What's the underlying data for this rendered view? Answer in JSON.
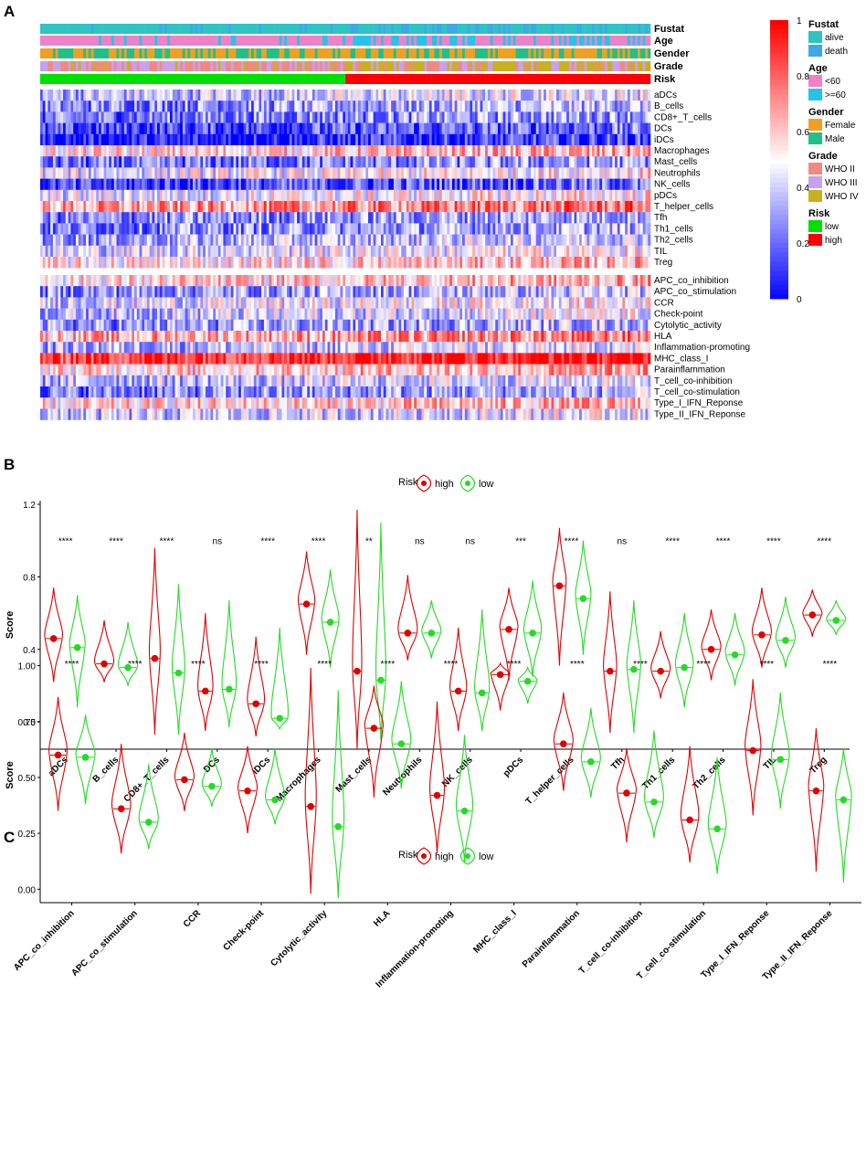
{
  "panels": {
    "a": "A",
    "b": "B",
    "c": "C"
  },
  "chart_data": [
    {
      "type": "heatmap",
      "panel": "A",
      "annotation_rows": [
        "Fustat",
        "Age",
        "Gender",
        "Grade",
        "Risk"
      ],
      "risk_split": {
        "low_fraction": 0.5
      },
      "rows_group1": [
        "aDCs",
        "B_cells",
        "CD8+_T_cells",
        "DCs",
        "iDCs",
        "Macrophages",
        "Mast_cells",
        "Neutrophils",
        "NK_cells",
        "pDCs",
        "T_helper_cells",
        "Tfh",
        "Th1_cells",
        "Th2_cells",
        "TIL",
        "Treg"
      ],
      "rows_group2": [
        "APC_co_inhibition",
        "APC_co_stimulation",
        "CCR",
        "Check-point",
        "Cytolytic_activity",
        "HLA",
        "Inflammation-promoting",
        "MHC_class_I",
        "Parainflammation",
        "T_cell_co-inhibition",
        "T_cell_co-stimulation",
        "Type_I_IFN_Reponse",
        "Type_II_IFN_Reponse"
      ],
      "row_mean_level": {
        "aDCs": 0.42,
        "B_cells": 0.32,
        "CD8+_T_cells": 0.28,
        "DCs": 0.17,
        "iDCs": 0.08,
        "Macrophages": 0.6,
        "Mast_cells": 0.25,
        "Neutrophils": 0.5,
        "NK_cells": 0.17,
        "pDCs": 0.5,
        "T_helper_cells": 0.72,
        "Tfh": 0.3,
        "Th1_cells": 0.3,
        "Th2_cells": 0.38,
        "TIL": 0.47,
        "Treg": 0.58,
        "APC_co_inhibition": 0.6,
        "APC_co_stimulation": 0.33,
        "CCR": 0.48,
        "Check-point": 0.42,
        "Cytolytic_activity": 0.32,
        "HLA": 0.69,
        "Inflammation-promoting": 0.4,
        "MHC_class_I": 0.95,
        "Parainflammation": 0.62,
        "T_cell_co-inhibition": 0.41,
        "T_cell_co-stimulation": 0.29,
        "Type_I_IFN_Reponse": 0.6,
        "Type_II_IFN_Reponse": 0.42
      },
      "colorbar": {
        "min": 0,
        "max": 1,
        "ticks": [
          1,
          0.8,
          0.6,
          0.4,
          0.2,
          0
        ],
        "low_color": "#0000ff",
        "mid_color": "#ffffff",
        "high_color": "#ff0000"
      },
      "legend": [
        {
          "title": "Fustat",
          "items": [
            {
              "label": "alive",
              "color": "#2ec4c4"
            },
            {
              "label": "death",
              "color": "#3fa7e8"
            }
          ]
        },
        {
          "title": "Age",
          "items": [
            {
              "label": "<60",
              "color": "#ee82c8"
            },
            {
              "label": ">=60",
              "color": "#22c5e8"
            }
          ]
        },
        {
          "title": "Gender",
          "items": [
            {
              "label": "Female",
              "color": "#f0a020"
            },
            {
              "label": "Male",
              "color": "#20c08a"
            }
          ]
        },
        {
          "title": "Grade",
          "items": [
            {
              "label": "WHO II",
              "color": "#f08a80"
            },
            {
              "label": "WHO III",
              "color": "#c8a0f0"
            },
            {
              "label": "WHO IV",
              "color": "#c8b020"
            }
          ]
        },
        {
          "title": "Risk",
          "items": [
            {
              "label": "low",
              "color": "#00e000"
            },
            {
              "label": "high",
              "color": "#ff0000"
            }
          ]
        }
      ]
    },
    {
      "type": "violin",
      "panel": "B",
      "ylabel": "Score",
      "ylim": [
        -0.15,
        1.22
      ],
      "yticks": [
        0.0,
        0.4,
        0.8,
        1.2
      ],
      "yticklabels": [
        "0.0",
        "0.4",
        "0.8",
        "1.2"
      ],
      "legend": {
        "title": "Risk",
        "series": [
          "high",
          "low"
        ]
      },
      "series_colors": {
        "high": "#e00000",
        "low": "#22dd22"
      },
      "categories": [
        "aDCs",
        "B_cells",
        "CD8+_T_cells",
        "DCs",
        "iDCs",
        "Macrophages",
        "Mast_cells",
        "Neutrophils",
        "NK_cells",
        "pDCs",
        "T_helper_cells",
        "Tfh",
        "Th1_cells",
        "Th2_cells",
        "TIL",
        "Treg"
      ],
      "significance": [
        "****",
        "****",
        "****",
        "ns",
        "****",
        "****",
        "**",
        "ns",
        "ns",
        "***",
        "****",
        "ns",
        "****",
        "****",
        "****",
        "****"
      ],
      "high": {
        "median": [
          0.46,
          0.32,
          0.35,
          0.17,
          0.1,
          0.65,
          0.28,
          0.49,
          0.17,
          0.51,
          0.75,
          0.28,
          0.28,
          0.4,
          0.48,
          0.59
        ],
        "min": [
          0.22,
          0.22,
          -0.07,
          -0.05,
          -0.08,
          0.37,
          -0.15,
          0.34,
          -0.05,
          0.23,
          0.31,
          -0.06,
          0.13,
          0.23,
          0.3,
          0.47
        ],
        "max": [
          0.74,
          0.56,
          0.96,
          0.6,
          0.47,
          0.94,
          1.17,
          0.81,
          0.52,
          0.74,
          1.07,
          0.72,
          0.5,
          0.62,
          0.74,
          0.73
        ]
      },
      "low": {
        "median": [
          0.41,
          0.3,
          0.27,
          0.18,
          0.02,
          0.55,
          0.23,
          0.49,
          0.16,
          0.49,
          0.68,
          0.29,
          0.3,
          0.37,
          0.45,
          0.56
        ],
        "min": [
          0.08,
          0.2,
          -0.07,
          -0.03,
          -0.04,
          0.3,
          -0.1,
          0.35,
          -0.05,
          0.25,
          0.37,
          -0.06,
          0.08,
          0.2,
          0.3,
          0.48
        ],
        "max": [
          0.7,
          0.55,
          0.76,
          0.67,
          0.52,
          0.84,
          1.1,
          0.67,
          0.62,
          0.78,
          1.0,
          0.67,
          0.6,
          0.6,
          0.69,
          0.67
        ]
      }
    },
    {
      "type": "violin",
      "panel": "C",
      "ylabel": "Score",
      "ylim": [
        -0.06,
        1.08
      ],
      "yticks": [
        0.0,
        0.25,
        0.5,
        0.75,
        1.0
      ],
      "yticklabels": [
        "0.00",
        "0.25",
        "0.50",
        "0.75",
        "1.00"
      ],
      "legend": {
        "title": "Risk",
        "series": [
          "high",
          "low"
        ]
      },
      "series_colors": {
        "high": "#e00000",
        "low": "#22dd22"
      },
      "categories": [
        "APC_co_inhibition",
        "APC_co_stimulation",
        "CCR",
        "Check-point",
        "Cytolytic_activity",
        "HLA",
        "Inflammation-promoting",
        "MHC_class_I",
        "Parainflammation",
        "T_cell_co-inhibition",
        "T_cell_co-stimulation",
        "Type_I_IFN_Reponse",
        "Type_II_IFN_Reponse"
      ],
      "significance": [
        "****",
        "****",
        "****",
        "****",
        "****",
        "****",
        "****",
        "****",
        "****",
        "****",
        "****",
        "****",
        "****"
      ],
      "high": {
        "median": [
          0.6,
          0.36,
          0.49,
          0.44,
          0.37,
          0.72,
          0.42,
          0.96,
          0.65,
          0.43,
          0.31,
          0.62,
          0.44
        ],
        "min": [
          0.35,
          0.16,
          0.35,
          0.25,
          -0.02,
          0.41,
          0.16,
          0.8,
          0.44,
          0.21,
          0.12,
          0.33,
          0.08
        ],
        "max": [
          0.86,
          0.65,
          0.7,
          0.64,
          0.99,
          0.91,
          0.84,
          1.01,
          0.88,
          0.63,
          0.64,
          0.94,
          0.72
        ]
      },
      "low": {
        "median": [
          0.59,
          0.3,
          0.46,
          0.4,
          0.28,
          0.65,
          0.35,
          0.93,
          0.57,
          0.39,
          0.27,
          0.58,
          0.4
        ],
        "min": [
          0.38,
          0.18,
          0.37,
          0.29,
          -0.04,
          0.45,
          0.12,
          0.83,
          0.41,
          0.23,
          0.07,
          0.36,
          0.03
        ],
        "max": [
          0.78,
          0.56,
          0.63,
          0.63,
          0.89,
          0.93,
          0.69,
          0.99,
          0.81,
          0.71,
          0.59,
          0.88,
          0.63
        ]
      }
    }
  ]
}
